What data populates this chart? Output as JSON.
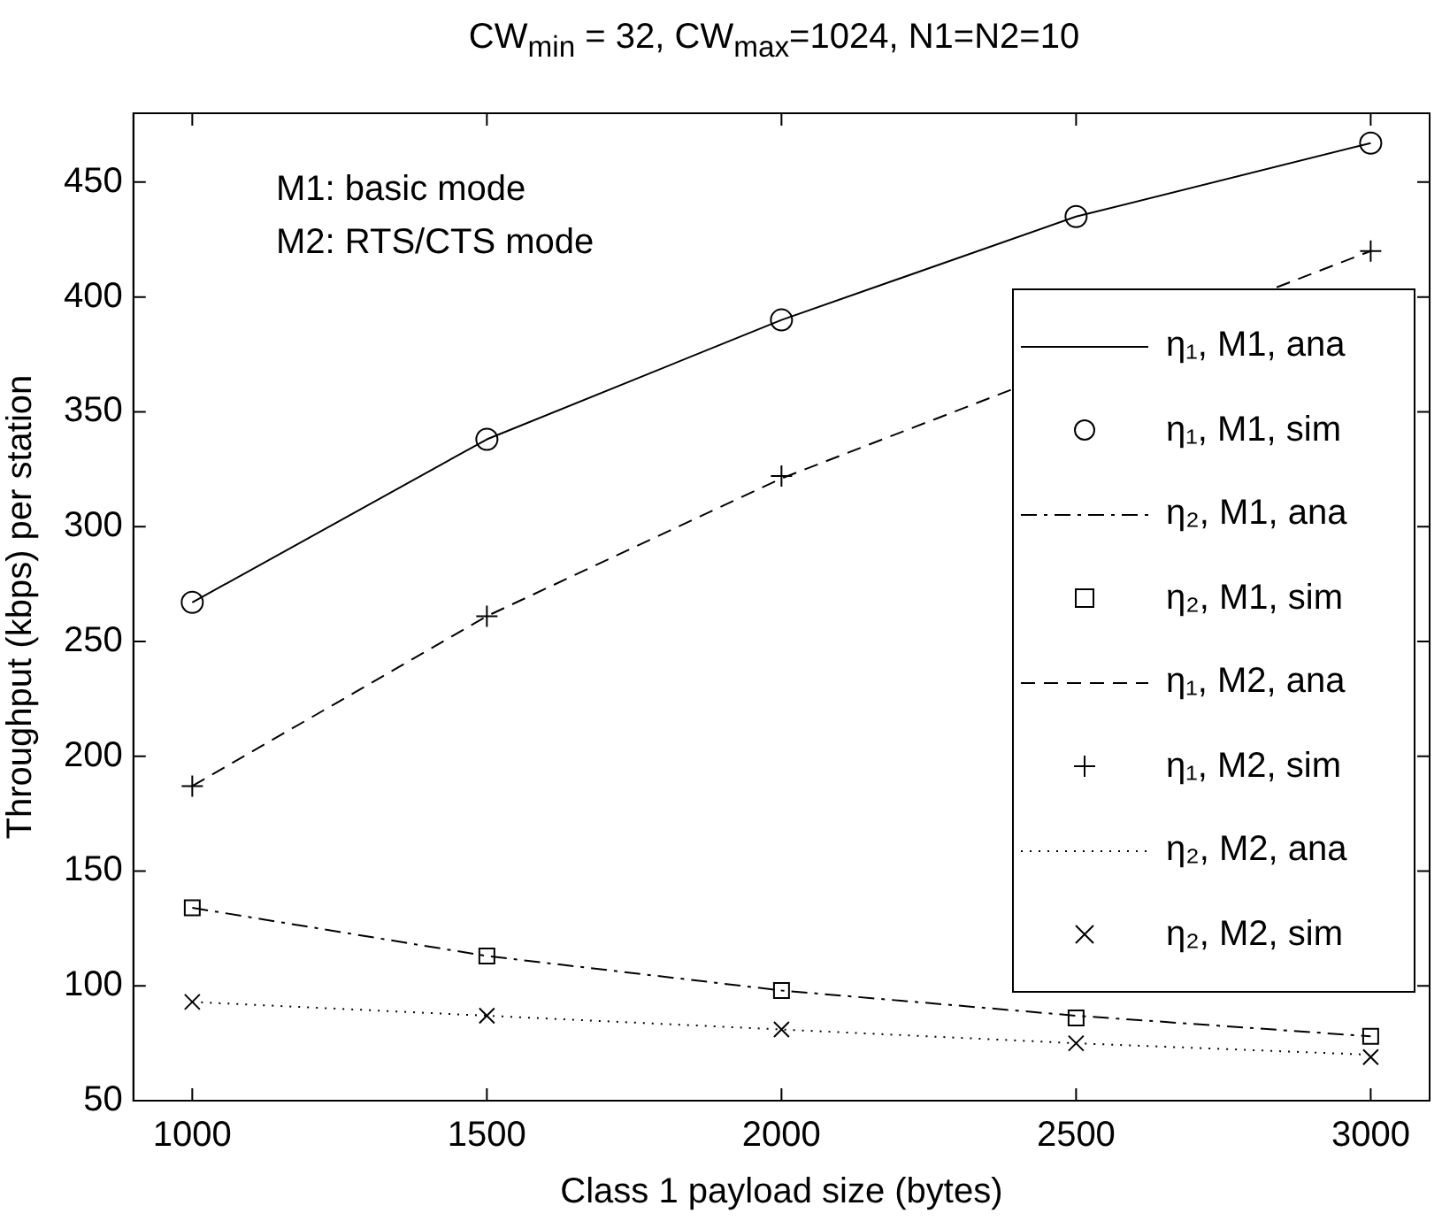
{
  "chart_data": {
    "type": "line",
    "title": "CW$_{min}$ = 32, CW$_{max}$=1024, N1=N2=10",
    "xlabel": "Class 1 payload size (bytes)",
    "ylabel": "Throughput (kbps) per station",
    "annotations": [
      "M1: basic mode",
      "M2: RTS/CTS mode"
    ],
    "x": [
      1000,
      1500,
      2000,
      2500,
      3000
    ],
    "xlim": [
      900,
      3100
    ],
    "xticks": [
      1000,
      1500,
      2000,
      2500,
      3000
    ],
    "ylim": [
      50,
      480
    ],
    "yticks": [
      50,
      100,
      150,
      200,
      250,
      300,
      350,
      400,
      450
    ],
    "grid": false,
    "legend": "right",
    "series": [
      {
        "name": "η₁, M1, ana",
        "type": "line",
        "color": "#000000",
        "line_style": "solid",
        "marker": "none",
        "values": [
          267,
          338,
          390,
          435,
          467
        ]
      },
      {
        "name": "η₁, M1, sim",
        "type": "scatter",
        "color": "#000000",
        "marker": "circle",
        "values": [
          267,
          338,
          390,
          435,
          467
        ]
      },
      {
        "name": "η₂, M1, ana",
        "type": "line",
        "color": "#000000",
        "line_style": "dashdot",
        "marker": "none",
        "values": [
          134,
          113,
          98,
          87,
          78
        ]
      },
      {
        "name": "η₂, M1, sim",
        "type": "scatter",
        "color": "#000000",
        "marker": "square",
        "values": [
          134,
          113,
          98,
          86,
          78
        ]
      },
      {
        "name": "η₁, M2, ana",
        "type": "line",
        "color": "#000000",
        "line_style": "dashed",
        "marker": "none",
        "values": [
          187,
          261,
          321,
          null,
          420
        ]
      },
      {
        "name": "η₁, M2, sim",
        "type": "scatter",
        "color": "#000000",
        "marker": "plus",
        "values": [
          187,
          261,
          322,
          null,
          420
        ]
      },
      {
        "name": "η₂, M2, ana",
        "type": "line",
        "color": "#000000",
        "line_style": "dotted",
        "marker": "none",
        "values": [
          93,
          87,
          81,
          75,
          70
        ]
      },
      {
        "name": "η₂, M2, sim",
        "type": "scatter",
        "color": "#000000",
        "marker": "cross",
        "values": [
          93,
          87,
          81,
          75,
          69
        ]
      }
    ]
  }
}
